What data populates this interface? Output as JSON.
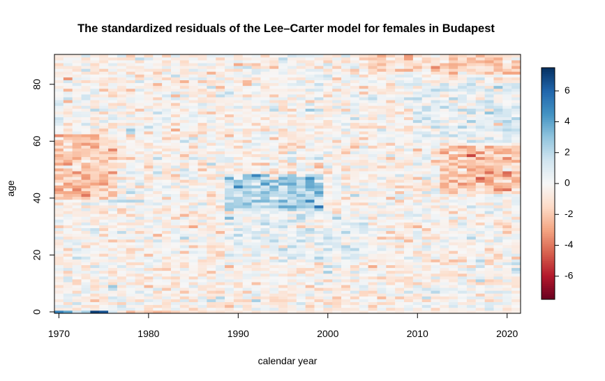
{
  "chart_data": {
    "type": "heatmap",
    "title": "The standardized residuals of the Lee–Carter model for females in Budapest",
    "xlabel": "calendar year",
    "ylabel": "age",
    "x_range": [
      1970,
      2021
    ],
    "y_range": [
      0,
      90
    ],
    "xlim": [
      1969.5,
      2021.5
    ],
    "ylim": [
      -0.5,
      90.5
    ],
    "x_ticks": [
      1970,
      1980,
      1990,
      2000,
      2010,
      2020
    ],
    "y_ticks": [
      0,
      20,
      40,
      60,
      80
    ],
    "colorbar": {
      "range": [
        -7.5,
        7.5
      ],
      "ticks": [
        -6,
        -4,
        -2,
        0,
        2,
        4,
        6
      ],
      "palette": [
        "#67001f",
        "#b2182b",
        "#d6604d",
        "#f4a582",
        "#fddbc7",
        "#f7f7f7",
        "#d1e5f0",
        "#92c5de",
        "#4393c3",
        "#2166ac",
        "#053061"
      ]
    },
    "patterns": {
      "description_free_note": "",
      "hotspots": [
        {
          "year_min": 1989,
          "year_max": 1999,
          "age_min": 36,
          "age_max": 48,
          "value": 2.6
        },
        {
          "year_min": 1970,
          "year_max": 1976,
          "age_min": 40,
          "age_max": 62,
          "value": -1.6
        },
        {
          "year_min": 2013,
          "year_max": 2021,
          "age_min": 42,
          "age_max": 58,
          "value": -1.8
        },
        {
          "year_min": 2005,
          "year_max": 2021,
          "age_min": 84,
          "age_max": 90,
          "value": -1.2
        },
        {
          "year_min": 1989,
          "year_max": 2004,
          "age_min": 18,
          "age_max": 34,
          "value": 0.8
        },
        {
          "year_min": 2010,
          "year_max": 2021,
          "age_min": 60,
          "age_max": 80,
          "value": 0.9
        }
      ],
      "age0_row": [
        {
          "year": 1970,
          "value": 5.0
        },
        {
          "year": 1971,
          "value": 4.0
        },
        {
          "year": 1972,
          "value": 1.5
        },
        {
          "year": 1973,
          "value": 2.5
        },
        {
          "year": 1974,
          "value": 7.0
        },
        {
          "year": 1975,
          "value": 6.5
        },
        {
          "year": 1976,
          "value": 1.2
        },
        {
          "year": 1977,
          "value": -0.8
        },
        {
          "year": 1978,
          "value": -2.5
        },
        {
          "year": 1979,
          "value": -1.5
        },
        {
          "year": 1980,
          "value": -2.0
        },
        {
          "year": 1981,
          "value": -2.5
        },
        {
          "year": 1982,
          "value": -2.2
        },
        {
          "year": 1983,
          "value": -1.8
        },
        {
          "year": 1984,
          "value": -1.2
        },
        {
          "year": 1985,
          "value": -1.0
        },
        {
          "year": 1986,
          "value": -1.5
        },
        {
          "year": 1987,
          "value": -1.0
        },
        {
          "year": 1988,
          "value": -1.2
        },
        {
          "year": 1989,
          "value": -0.8
        },
        {
          "year": 1990,
          "value": -1.0
        },
        {
          "year": 1991,
          "value": -0.5
        },
        {
          "year": 1992,
          "value": -1.2
        },
        {
          "year": 1993,
          "value": -0.6
        },
        {
          "year": 1994,
          "value": -0.9
        },
        {
          "year": 1995,
          "value": -1.1
        },
        {
          "year": 1996,
          "value": -0.4
        },
        {
          "year": 1997,
          "value": -0.8
        },
        {
          "year": 1998,
          "value": -1.0
        },
        {
          "year": 1999,
          "value": -0.6
        },
        {
          "year": 2000,
          "value": -0.9
        },
        {
          "year": 2001,
          "value": -0.3
        },
        {
          "year": 2002,
          "value": -0.7
        },
        {
          "year": 2003,
          "value": -0.5
        },
        {
          "year": 2004,
          "value": -0.8
        },
        {
          "year": 2005,
          "value": -0.2
        },
        {
          "year": 2006,
          "value": -0.6
        },
        {
          "year": 2007,
          "value": -0.4
        },
        {
          "year": 2008,
          "value": -0.7
        },
        {
          "year": 2009,
          "value": -0.3
        },
        {
          "year": 2010,
          "value": -0.6
        },
        {
          "year": 2011,
          "value": -0.5
        },
        {
          "year": 2012,
          "value": -0.8
        },
        {
          "year": 2013,
          "value": -0.4
        },
        {
          "year": 2014,
          "value": -0.6
        },
        {
          "year": 2015,
          "value": -0.5
        },
        {
          "year": 2016,
          "value": -0.7
        },
        {
          "year": 2017,
          "value": -0.4
        },
        {
          "year": 2018,
          "value": -0.6
        },
        {
          "year": 2019,
          "value": -0.5
        },
        {
          "year": 2020,
          "value": -0.7
        },
        {
          "year": 2021,
          "value": -0.4
        }
      ],
      "noise_sd": 0.9,
      "base_value": -0.25
    }
  }
}
